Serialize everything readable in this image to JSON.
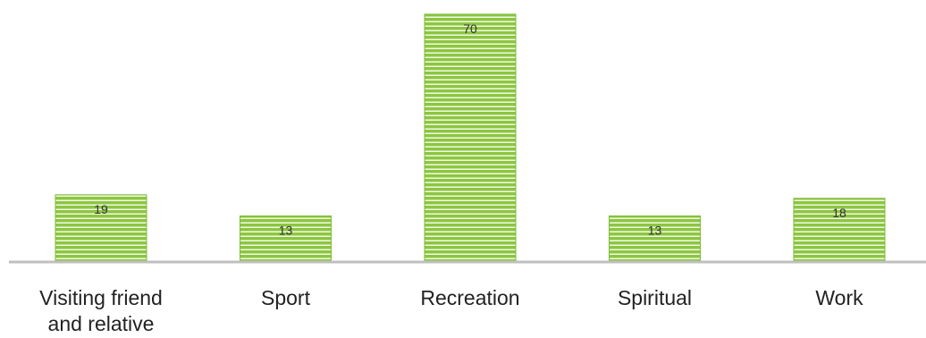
{
  "chart_data": {
    "type": "bar",
    "categories": [
      [
        "Visiting friend",
        "and relative"
      ],
      [
        "Sport"
      ],
      [
        "Recreation"
      ],
      [
        "Spiritual"
      ],
      [
        "Work"
      ]
    ],
    "values": [
      19,
      13,
      70,
      13,
      18
    ],
    "ylim": [
      0,
      72
    ],
    "grid": false,
    "legend": "none",
    "data_labels": true,
    "colors": {
      "bar_fill": "#8cc63f",
      "bar_stripe": "#ffffff",
      "bar_border": "#7cbb3a",
      "axis": "#bfbfbf"
    }
  }
}
